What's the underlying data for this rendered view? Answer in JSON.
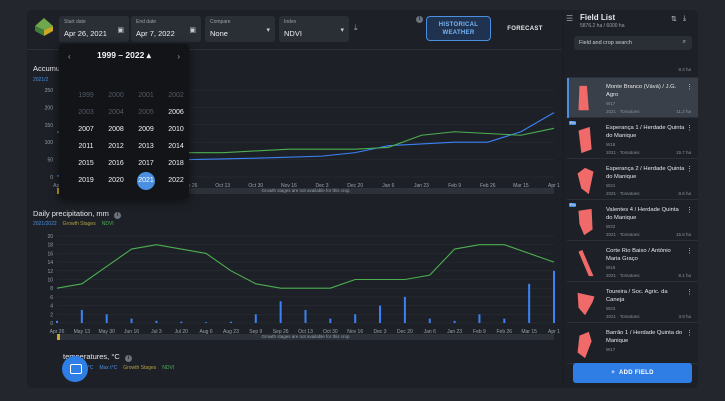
{
  "toolbar": {
    "start_date": {
      "label": "Start date",
      "value": "Apr 26, 2021"
    },
    "end_date": {
      "label": "End date",
      "value": "Apr 7, 2022"
    },
    "compare": {
      "label": "Compare",
      "value": "None"
    },
    "index": {
      "label": "Index",
      "value": "NDVI"
    },
    "historical_label": "HISTORICAL WEATHER",
    "forecast_label": "FORECAST"
  },
  "picker": {
    "title": "1999 – 2022",
    "years": [
      {
        "y": "1999",
        "dim": true
      },
      {
        "y": "2000",
        "dim": true
      },
      {
        "y": "2001",
        "dim": true
      },
      {
        "y": "2002",
        "dim": true
      },
      {
        "y": "2003",
        "dim": true
      },
      {
        "y": "2004",
        "dim": true
      },
      {
        "y": "2005",
        "dim": true
      },
      {
        "y": "2006",
        "dim": false
      },
      {
        "y": "2007",
        "dim": false
      },
      {
        "y": "2008",
        "dim": false
      },
      {
        "y": "2009",
        "dim": false
      },
      {
        "y": "2010",
        "dim": false
      },
      {
        "y": "2011",
        "dim": false
      },
      {
        "y": "2012",
        "dim": false
      },
      {
        "y": "2013",
        "dim": false
      },
      {
        "y": "2014",
        "dim": false
      },
      {
        "y": "2015",
        "dim": false
      },
      {
        "y": "2016",
        "dim": false
      },
      {
        "y": "2017",
        "dim": false
      },
      {
        "y": "2018",
        "dim": false
      },
      {
        "y": "2019",
        "dim": false
      },
      {
        "y": "2020",
        "dim": false
      },
      {
        "y": "2021",
        "dim": false,
        "selected": true
      },
      {
        "y": "2022",
        "dim": false
      }
    ]
  },
  "charts": {
    "accum_title": "Accumul",
    "accum_legend": "2021/2",
    "precip_title": "Daily precipitation, mm",
    "precip_legend": [
      "2021/2022",
      "Growth Stages",
      "NDVI"
    ],
    "temp_title": "temperatures, °C",
    "temp_legend": [
      "2022 Max t°C",
      "Max t°C",
      "Growth Stages",
      "NDVI"
    ],
    "growth_notice": "Growth stages are not available for this crop"
  },
  "chart_data": [
    {
      "type": "line",
      "title": "Accumul",
      "x": [
        "Apr",
        "Aug 6",
        "Aug 23",
        "Sep 9",
        "Sep 26",
        "Oct 13",
        "Oct 30",
        "Nov 16",
        "Dec 3",
        "Dec 20",
        "Jan 6",
        "Jan 23",
        "Feb 9",
        "Feb 26",
        "Mar 15",
        "Apr 1"
      ],
      "yticks": [
        "0",
        "50",
        "100",
        "150",
        "200",
        "250"
      ],
      "ylim": [
        0,
        250
      ],
      "series": [
        {
          "name": "2021/2",
          "color": "#3b82f6",
          "values": [
            2,
            40,
            45,
            48,
            50,
            52,
            54,
            57,
            60,
            70,
            90,
            95,
            100,
            100,
            130,
            185
          ]
        },
        {
          "color": "#4caf50",
          "values": [
            130,
            95,
            70,
            70,
            70,
            70,
            75,
            80,
            80,
            80,
            85,
            120,
            130,
            125,
            120,
            140
          ]
        }
      ]
    },
    {
      "type": "bar",
      "title": "Daily precipitation, mm",
      "categories": [
        "Apr 26",
        "May 13",
        "May 30",
        "Jun 16",
        "Jul 3",
        "Jul 20",
        "Aug 6",
        "Aug 23",
        "Sep 9",
        "Sep 26",
        "Oct 13",
        "Oct 30",
        "Nov 16",
        "Dec 3",
        "Dec 20",
        "Jan 6",
        "Jan 23",
        "Feb 9",
        "Feb 26",
        "Mar 15",
        "Apr 1"
      ],
      "yticks": [
        "0",
        "2",
        "4",
        "6",
        "8",
        "10",
        "12",
        "14",
        "16",
        "18",
        "20"
      ],
      "ylim": [
        0,
        20
      ],
      "series": [
        {
          "name": "2021/2022",
          "color": "#3b82f6",
          "values": [
            0.5,
            3,
            2,
            1,
            0.5,
            0.3,
            0.2,
            0.3,
            2,
            5,
            3,
            1,
            2,
            4,
            6,
            1,
            0.5,
            2,
            1,
            9,
            12
          ]
        },
        {
          "name": "NDVI",
          "color": "#4caf50",
          "values": [
            8,
            9,
            13,
            17,
            18,
            17,
            16,
            12,
            9,
            8,
            8,
            8,
            10,
            10,
            10,
            11,
            17,
            18,
            18,
            16,
            14
          ]
        }
      ]
    }
  ],
  "side": {
    "title": "Field List",
    "summary": "5876.2 ha / 6000 ha",
    "search_placeholder": "Field and crop search",
    "top_area": "8.3 ha",
    "items": [
      {
        "name": "Monte Branco (Vává) / J.G. Agro",
        "week": "W17",
        "season": "2021 · Tomatoes",
        "area": "11.2 ha",
        "selected": true,
        "pro": false
      },
      {
        "name": "Esperança 1 / Herdade Quinta do Manique",
        "week": "W18",
        "season": "2021 · Tomatoes",
        "area": "15.7 ha",
        "selected": false,
        "pro": true
      },
      {
        "name": "Esperança 2 / Herdade Quinta do Manique",
        "week": "W21",
        "season": "2021 · Tomatoes",
        "area": "8.6 ha",
        "selected": false,
        "pro": false
      },
      {
        "name": "Valentes 4 / Herdade Quinta do Manique",
        "week": "W22",
        "season": "2021 · Tomatoes",
        "area": "15.6 ha",
        "selected": false,
        "pro": true
      },
      {
        "name": "Corte Rio Baixo / António Maria Graço",
        "week": "W18",
        "season": "2021 · Tomatoes",
        "area": "8.1 ha",
        "selected": false,
        "pro": false
      },
      {
        "name": "Toureira / Soc. Agric. da Caneja",
        "week": "W23",
        "season": "2021 · Tomatoes",
        "area": "3.9 ha",
        "selected": false,
        "pro": false
      },
      {
        "name": "Barrão 1 / Herdade Quinta do Manique",
        "week": "W17",
        "season": "",
        "area": "",
        "selected": false,
        "pro": false
      }
    ],
    "add_label": "ADD FIELD"
  }
}
